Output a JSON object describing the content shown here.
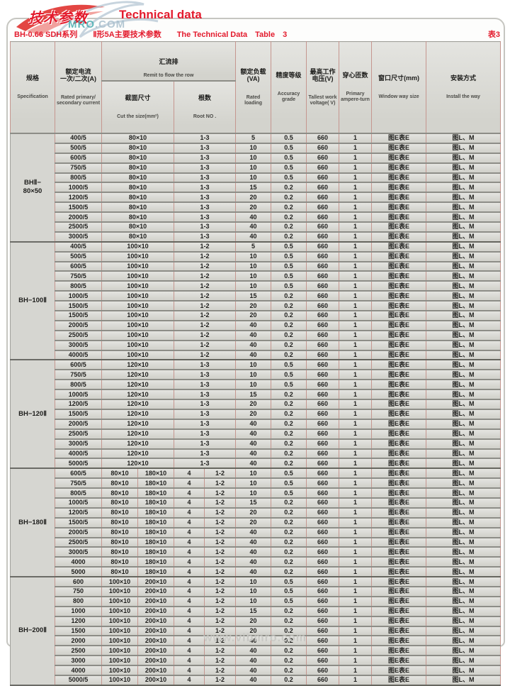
{
  "page": {
    "logo_cn": "技术参数",
    "logo_en": "Technical data",
    "logo_mro": "MRO",
    "logo_com": ".COM",
    "subtitle": "BH-0.66 SDH系列　　Ⅱ形5A主要技术参数　　The Technical Data　Table　3",
    "table_no": "表3",
    "watermark_bottom": "www.vibmro.com"
  },
  "table": {
    "headers": {
      "spec_cn": "规格",
      "spec_en": "Specification",
      "current_cn": "额定电流\n一次/二次(A)",
      "current_en": "Rated primary/\nsecondary current",
      "busbar_cn": "汇流排 ",
      "busbar_en": "Remit to flow the row",
      "cut_cn": "截面尺寸",
      "cut_en": "Cut the size(mm²)",
      "root_cn": "根数",
      "root_en": "Root NO .",
      "va_cn": "额定负载\n(VA)",
      "va_en": "Rated\nloading",
      "acc_cn": "精度等级",
      "acc_en": "Accuracy\ngrade",
      "volt_cn": "最高工作\n电压(V)",
      "volt_en": "Tallest work\nvoltage( V)",
      "turns_cn": "穿心匝数",
      "turns_en": "Primary\nampere-turn",
      "window_cn": "窗口尺寸(mm)",
      "window_en": "Window way size",
      "install_cn": "安装方式",
      "install_en": "Install the way"
    },
    "sections": [
      {
        "spec_lines": [
          "BHⅡ−",
          "80×50"
        ],
        "rows": [
          [
            "400/5",
            [
              "80×10"
            ],
            [
              "1-3"
            ],
            "5",
            "0.5",
            "660",
            "1",
            "图E表E",
            "图L、M"
          ],
          [
            "500/5",
            [
              "80×10"
            ],
            [
              "1-3"
            ],
            "10",
            "0.5",
            "660",
            "1",
            "图E表E",
            "图L、M"
          ],
          [
            "600/5",
            [
              "80×10"
            ],
            [
              "1-3"
            ],
            "10",
            "0.5",
            "660",
            "1",
            "图E表E",
            "图L、M"
          ],
          [
            "750/5",
            [
              "80×10"
            ],
            [
              "1-3"
            ],
            "10",
            "0.5",
            "660",
            "1",
            "图E表E",
            "图L、M"
          ],
          [
            "800/5",
            [
              "80×10"
            ],
            [
              "1-3"
            ],
            "10",
            "0.5",
            "660",
            "1",
            "图E表E",
            "图L、M"
          ],
          [
            "1000/5",
            [
              "80×10"
            ],
            [
              "1-3"
            ],
            "15",
            "0.2",
            "660",
            "1",
            "图E表E",
            "图L、M"
          ],
          [
            "1200/5",
            [
              "80×10"
            ],
            [
              "1-3"
            ],
            "20",
            "0.2",
            "660",
            "1",
            "图E表E",
            "图L、M"
          ],
          [
            "1500/5",
            [
              "80×10"
            ],
            [
              "1-3"
            ],
            "20",
            "0.2",
            "660",
            "1",
            "图E表E",
            "图L、M"
          ],
          [
            "2000/5",
            [
              "80×10"
            ],
            [
              "1-3"
            ],
            "40",
            "0.2",
            "660",
            "1",
            "图E表E",
            "图L、M"
          ],
          [
            "2500/5",
            [
              "80×10"
            ],
            [
              "1-3"
            ],
            "40",
            "0.2",
            "660",
            "1",
            "图E表E",
            "图L、M"
          ],
          [
            "3000/5",
            [
              "80×10"
            ],
            [
              "1-3"
            ],
            "40",
            "0.2",
            "660",
            "1",
            "图E表E",
            "图L、M"
          ]
        ]
      },
      {
        "spec_lines": [
          "BH−100Ⅱ"
        ],
        "rows": [
          [
            "400/5",
            [
              "100×10"
            ],
            [
              "1-2"
            ],
            "5",
            "0.5",
            "660",
            "1",
            "图E表E",
            "图L、M"
          ],
          [
            "500/5",
            [
              "100×10"
            ],
            [
              "1-2"
            ],
            "10",
            "0.5",
            "660",
            "1",
            "图E表E",
            "图L、M"
          ],
          [
            "600/5",
            [
              "100×10"
            ],
            [
              "1-2"
            ],
            "10",
            "0.5",
            "660",
            "1",
            "图E表E",
            "图L、M"
          ],
          [
            "750/5",
            [
              "100×10"
            ],
            [
              "1-2"
            ],
            "10",
            "0.5",
            "660",
            "1",
            "图E表E",
            "图L、M"
          ],
          [
            "800/5",
            [
              "100×10"
            ],
            [
              "1-2"
            ],
            "10",
            "0.5",
            "660",
            "1",
            "图E表E",
            "图L、M"
          ],
          [
            "1000/5",
            [
              "100×10"
            ],
            [
              "1-2"
            ],
            "15",
            "0.2",
            "660",
            "1",
            "图E表E",
            "图L、M"
          ],
          [
            "1500/5",
            [
              "100×10"
            ],
            [
              "1-2"
            ],
            "20",
            "0.2",
            "660",
            "1",
            "图E表E",
            "图L、M"
          ],
          [
            "1500/5",
            [
              "100×10"
            ],
            [
              "1-2"
            ],
            "20",
            "0.2",
            "660",
            "1",
            "图E表E",
            "图L、M"
          ],
          [
            "2000/5",
            [
              "100×10"
            ],
            [
              "1-2"
            ],
            "40",
            "0.2",
            "660",
            "1",
            "图E表E",
            "图L、M"
          ],
          [
            "2500/5",
            [
              "100×10"
            ],
            [
              "1-2"
            ],
            "40",
            "0.2",
            "660",
            "1",
            "图E表E",
            "图L、M"
          ],
          [
            "3000/5",
            [
              "100×10"
            ],
            [
              "1-2"
            ],
            "40",
            "0.2",
            "660",
            "1",
            "图E表E",
            "图L、M"
          ],
          [
            "4000/5",
            [
              "100×10"
            ],
            [
              "1-2"
            ],
            "40",
            "0.2",
            "660",
            "1",
            "图E表E",
            "图L、M"
          ]
        ]
      },
      {
        "spec_lines": [
          "BH−120Ⅱ"
        ],
        "rows": [
          [
            "600/5",
            [
              "120×10"
            ],
            [
              "1-3"
            ],
            "10",
            "0.5",
            "660",
            "1",
            "图E表E",
            "图L、M"
          ],
          [
            "750/5",
            [
              "120×10"
            ],
            [
              "1-3"
            ],
            "10",
            "0.5",
            "660",
            "1",
            "图E表E",
            "图L、M"
          ],
          [
            "800/5",
            [
              "120×10"
            ],
            [
              "1-3"
            ],
            "10",
            "0.5",
            "660",
            "1",
            "图E表E",
            "图L、M"
          ],
          [
            "1000/5",
            [
              "120×10"
            ],
            [
              "1-3"
            ],
            "15",
            "0.2",
            "660",
            "1",
            "图E表E",
            "图L、M"
          ],
          [
            "1200/5",
            [
              "120×10"
            ],
            [
              "1-3"
            ],
            "20",
            "0.2",
            "660",
            "1",
            "图E表E",
            "图L、M"
          ],
          [
            "1500/5",
            [
              "120×10"
            ],
            [
              "1-3"
            ],
            "20",
            "0.2",
            "660",
            "1",
            "图E表E",
            "图L、M"
          ],
          [
            "2000/5",
            [
              "120×10"
            ],
            [
              "1-3"
            ],
            "40",
            "0.2",
            "660",
            "1",
            "图E表E",
            "图L、M"
          ],
          [
            "2500/5",
            [
              "120×10"
            ],
            [
              "1-3"
            ],
            "40",
            "0.2",
            "660",
            "1",
            "图E表E",
            "图L、M"
          ],
          [
            "3000/5",
            [
              "120×10"
            ],
            [
              "1-3"
            ],
            "40",
            "0.2",
            "660",
            "1",
            "图E表E",
            "图L、M"
          ],
          [
            "4000/5",
            [
              "120×10"
            ],
            [
              "1-3"
            ],
            "40",
            "0.2",
            "660",
            "1",
            "图E表E",
            "图L、M"
          ],
          [
            "5000/5",
            [
              "120×10"
            ],
            [
              "1-3"
            ],
            "40",
            "0.2",
            "660",
            "1",
            "图E表E",
            "图L、M"
          ]
        ]
      },
      {
        "spec_lines": [
          "BH−180Ⅱ"
        ],
        "rows": [
          [
            "600/5",
            [
              "80×10",
              "180×10"
            ],
            [
              "4",
              "1-2"
            ],
            "10",
            "0.5",
            "660",
            "1",
            "图E表E",
            "图L、M"
          ],
          [
            "750/5",
            [
              "80×10",
              "180×10"
            ],
            [
              "4",
              "1-2"
            ],
            "10",
            "0.5",
            "660",
            "1",
            "图E表E",
            "图L、M"
          ],
          [
            "800/5",
            [
              "80×10",
              "180×10"
            ],
            [
              "4",
              "1-2"
            ],
            "10",
            "0.5",
            "660",
            "1",
            "图E表E",
            "图L、M"
          ],
          [
            "1000/5",
            [
              "80×10",
              "180×10"
            ],
            [
              "4",
              "1-2"
            ],
            "15",
            "0.2",
            "660",
            "1",
            "图E表E",
            "图L、M"
          ],
          [
            "1200/5",
            [
              "80×10",
              "180×10"
            ],
            [
              "4",
              "1-2"
            ],
            "20",
            "0.2",
            "660",
            "1",
            "图E表E",
            "图L、M"
          ],
          [
            "1500/5",
            [
              "80×10",
              "180×10"
            ],
            [
              "4",
              "1-2"
            ],
            "20",
            "0.2",
            "660",
            "1",
            "图E表E",
            "图L、M"
          ],
          [
            "2000/5",
            [
              "80×10",
              "180×10"
            ],
            [
              "4",
              "1-2"
            ],
            "40",
            "0.2",
            "660",
            "1",
            "图E表E",
            "图L、M"
          ],
          [
            "2500/5",
            [
              "80×10",
              "180×10"
            ],
            [
              "4",
              "1-2"
            ],
            "40",
            "0.2",
            "660",
            "1",
            "图E表E",
            "图L、M"
          ],
          [
            "3000/5",
            [
              "80×10",
              "180×10"
            ],
            [
              "4",
              "1-2"
            ],
            "40",
            "0.2",
            "660",
            "1",
            "图E表E",
            "图L、M"
          ],
          [
            "4000",
            [
              "80×10",
              "180×10"
            ],
            [
              "4",
              "1-2"
            ],
            "40",
            "0.2",
            "660",
            "1",
            "图E表E",
            "图L、M"
          ],
          [
            "5000",
            [
              "80×10",
              "180×10"
            ],
            [
              "4",
              "1-2"
            ],
            "40",
            "0.2",
            "660",
            "1",
            "图E表E",
            "图L、M"
          ]
        ]
      },
      {
        "spec_lines": [
          "BH−200Ⅱ"
        ],
        "rows": [
          [
            "600",
            [
              "100×10",
              "200×10"
            ],
            [
              "4",
              "1-2"
            ],
            "10",
            "0.5",
            "660",
            "1",
            "图E表E",
            "图L、M"
          ],
          [
            "750",
            [
              "100×10",
              "200×10"
            ],
            [
              "4",
              "1-2"
            ],
            "10",
            "0.5",
            "660",
            "1",
            "图E表E",
            "图L、M"
          ],
          [
            "800",
            [
              "100×10",
              "200×10"
            ],
            [
              "4",
              "1-2"
            ],
            "10",
            "0.5",
            "660",
            "1",
            "图E表E",
            "图L、M"
          ],
          [
            "1000",
            [
              "100×10",
              "200×10"
            ],
            [
              "4",
              "1-2"
            ],
            "15",
            "0.2",
            "660",
            "1",
            "图E表E",
            "图L、M"
          ],
          [
            "1200",
            [
              "100×10",
              "200×10"
            ],
            [
              "4",
              "1-2"
            ],
            "20",
            "0.2",
            "660",
            "1",
            "图E表E",
            "图L、M"
          ],
          [
            "1500",
            [
              "100×10",
              "200×10"
            ],
            [
              "4",
              "1-2"
            ],
            "20",
            "0.2",
            "660",
            "1",
            "图E表E",
            "图L、M"
          ],
          [
            "2000",
            [
              "100×10",
              "200×10"
            ],
            [
              "4",
              "1-2"
            ],
            "40",
            "0.2",
            "660",
            "1",
            "图E表E",
            "图L、M"
          ],
          [
            "2500",
            [
              "100×10",
              "200×10"
            ],
            [
              "4",
              "1-2"
            ],
            "40",
            "0.2",
            "660",
            "1",
            "图E表E",
            "图L、M"
          ],
          [
            "3000",
            [
              "100×10",
              "200×10"
            ],
            [
              "4",
              "1-2"
            ],
            "40",
            "0.2",
            "660",
            "1",
            "图E表E",
            "图L、M"
          ],
          [
            "4000",
            [
              "100×10",
              "200×10"
            ],
            [
              "4",
              "1-2"
            ],
            "40",
            "0.2",
            "660",
            "1",
            "图E表E",
            "图L、M"
          ],
          [
            "5000/5",
            [
              "100×10",
              "200×10"
            ],
            [
              "4",
              "1-2"
            ],
            "40",
            "0.2",
            "660",
            "1",
            "图E表E",
            "图L、M"
          ]
        ]
      }
    ]
  }
}
